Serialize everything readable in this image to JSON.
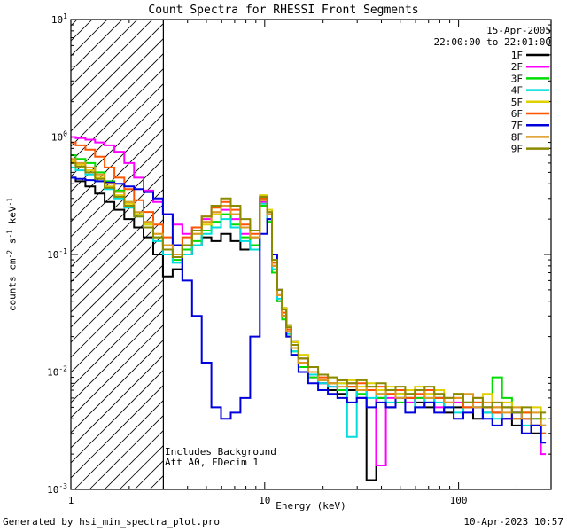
{
  "header": {
    "title": "Count Spectra for RHESSI Front Segments"
  },
  "info": {
    "date": "15-Apr-2005",
    "time_range": "22:00:00 to 22:01:00"
  },
  "annotations": {
    "line1": "Includes Background",
    "line2": "Att A0, FDecim 1"
  },
  "footer": {
    "left": "Generated by hsi_min_spectra_plot.pro",
    "right": "10-Apr-2023 10:57"
  },
  "axes": {
    "xlabel": "Energy (keV)",
    "ylabel_parts": [
      {
        "t": "counts cm"
      },
      {
        "sup": "-2"
      },
      {
        "t": " s"
      },
      {
        "sup": "-1"
      },
      {
        "t": " keV"
      },
      {
        "sup": "-1"
      }
    ],
    "xlim": [
      1,
      300
    ],
    "ylim": [
      0.001,
      10
    ],
    "xticks": [
      {
        "v": 1,
        "label": "1"
      },
      {
        "v": 10,
        "label": "10"
      },
      {
        "v": 100,
        "label": "100"
      }
    ],
    "yticks": [
      {
        "v": 0.001,
        "base": "10",
        "exp": "-3"
      },
      {
        "v": 0.01,
        "base": "10",
        "exp": "-2"
      },
      {
        "v": 0.1,
        "base": "10",
        "exp": "-1"
      },
      {
        "v": 1,
        "base": "10",
        "exp": "0"
      },
      {
        "v": 10,
        "base": "10",
        "exp": "1"
      }
    ]
  },
  "chart_data": {
    "type": "line",
    "x_scale": "log",
    "y_scale": "log",
    "title": "Count Spectra for RHESSI Front Segments",
    "xlabel": "Energy (keV)",
    "ylabel": "counts cm^-2 s^-1 keV^-1",
    "xlim": [
      1,
      300
    ],
    "ylim": [
      0.001,
      10
    ],
    "legend_position": "top-right",
    "hatch_region": {
      "x0": 1,
      "x1": 3
    },
    "x": [
      1.0,
      1.12,
      1.26,
      1.41,
      1.58,
      1.78,
      2.0,
      2.24,
      2.51,
      2.82,
      3.16,
      3.55,
      3.98,
      4.47,
      5.01,
      5.62,
      6.31,
      7.08,
      7.94,
      8.91,
      10.0,
      10.6,
      11.2,
      12.0,
      12.6,
      13.3,
      14.1,
      15.8,
      17.8,
      20.0,
      22.4,
      25.1,
      28.2,
      31.6,
      35.5,
      39.8,
      44.7,
      50.1,
      56.2,
      63.1,
      70.8,
      79.4,
      89.1,
      100,
      112,
      126,
      141,
      158,
      178,
      200,
      224,
      251,
      282
    ],
    "series": [
      {
        "name": "1F",
        "color": "#000000",
        "values": [
          0.45,
          0.42,
          0.38,
          0.33,
          0.28,
          0.24,
          0.2,
          0.17,
          0.14,
          0.1,
          0.065,
          0.075,
          0.1,
          0.12,
          0.14,
          0.13,
          0.15,
          0.13,
          0.11,
          0.14,
          0.3,
          0.22,
          0.1,
          0.05,
          0.035,
          0.025,
          0.018,
          0.013,
          0.01,
          0.008,
          0.007,
          0.0065,
          0.007,
          0.006,
          0.0012,
          0.006,
          0.005,
          0.0065,
          0.006,
          0.0055,
          0.005,
          0.006,
          0.0045,
          0.005,
          0.0055,
          0.004,
          0.005,
          0.0045,
          0.004,
          0.0035,
          0.004,
          0.003,
          0.0035
        ]
      },
      {
        "name": "2F",
        "color": "#ff00ff",
        "values": [
          1.0,
          0.98,
          0.95,
          0.9,
          0.85,
          0.75,
          0.6,
          0.45,
          0.35,
          0.28,
          0.22,
          0.18,
          0.15,
          0.17,
          0.2,
          0.22,
          0.24,
          0.2,
          0.15,
          0.12,
          0.28,
          0.2,
          0.08,
          0.04,
          0.03,
          0.022,
          0.016,
          0.012,
          0.009,
          0.008,
          0.0075,
          0.007,
          0.008,
          0.006,
          0.007,
          0.0016,
          0.006,
          0.007,
          0.0055,
          0.006,
          0.0065,
          0.005,
          0.006,
          0.0055,
          0.005,
          0.006,
          0.0045,
          0.005,
          0.004,
          0.0045,
          0.004,
          0.0035,
          0.002
        ]
      },
      {
        "name": "3F",
        "color": "#00dd00",
        "values": [
          0.7,
          0.65,
          0.6,
          0.5,
          0.42,
          0.35,
          0.28,
          0.22,
          0.18,
          0.14,
          0.11,
          0.09,
          0.11,
          0.13,
          0.16,
          0.19,
          0.22,
          0.18,
          0.14,
          0.12,
          0.26,
          0.19,
          0.07,
          0.04,
          0.028,
          0.02,
          0.015,
          0.011,
          0.009,
          0.0085,
          0.008,
          0.007,
          0.0075,
          0.0065,
          0.007,
          0.006,
          0.0065,
          0.0055,
          0.007,
          0.006,
          0.0055,
          0.006,
          0.005,
          0.0065,
          0.005,
          0.0055,
          0.0045,
          0.009,
          0.006,
          0.004,
          0.0045,
          0.0035,
          0.004
        ]
      },
      {
        "name": "4F",
        "color": "#00dddd",
        "values": [
          0.55,
          0.52,
          0.48,
          0.42,
          0.36,
          0.3,
          0.25,
          0.21,
          0.17,
          0.13,
          0.1,
          0.085,
          0.1,
          0.12,
          0.15,
          0.17,
          0.2,
          0.17,
          0.13,
          0.11,
          0.27,
          0.2,
          0.075,
          0.042,
          0.03,
          0.021,
          0.015,
          0.012,
          0.0095,
          0.008,
          0.0075,
          0.008,
          0.0028,
          0.007,
          0.006,
          0.0065,
          0.0055,
          0.006,
          0.0065,
          0.005,
          0.006,
          0.0055,
          0.005,
          0.0045,
          0.0055,
          0.005,
          0.0045,
          0.004,
          0.005,
          0.0045,
          0.0035,
          0.004,
          0.003
        ]
      },
      {
        "name": "5F",
        "color": "#e0d000",
        "values": [
          0.62,
          0.58,
          0.52,
          0.45,
          0.38,
          0.32,
          0.27,
          0.22,
          0.18,
          0.15,
          0.12,
          0.1,
          0.12,
          0.15,
          0.18,
          0.22,
          0.26,
          0.22,
          0.17,
          0.14,
          0.32,
          0.24,
          0.09,
          0.05,
          0.035,
          0.025,
          0.018,
          0.014,
          0.011,
          0.0095,
          0.009,
          0.008,
          0.0085,
          0.0075,
          0.008,
          0.007,
          0.0075,
          0.0065,
          0.007,
          0.0075,
          0.0065,
          0.007,
          0.006,
          0.0065,
          0.0055,
          0.006,
          0.0065,
          0.005,
          0.0055,
          0.005,
          0.0045,
          0.005,
          0.004
        ]
      },
      {
        "name": "6F",
        "color": "#ff5500",
        "values": [
          0.9,
          0.85,
          0.78,
          0.68,
          0.55,
          0.45,
          0.36,
          0.29,
          0.23,
          0.18,
          0.14,
          0.12,
          0.14,
          0.17,
          0.21,
          0.25,
          0.28,
          0.24,
          0.18,
          0.15,
          0.3,
          0.22,
          0.085,
          0.045,
          0.032,
          0.023,
          0.017,
          0.013,
          0.01,
          0.009,
          0.008,
          0.0085,
          0.0075,
          0.008,
          0.007,
          0.0075,
          0.0065,
          0.007,
          0.006,
          0.0065,
          0.007,
          0.006,
          0.0055,
          0.006,
          0.005,
          0.0055,
          0.005,
          0.0045,
          0.005,
          0.004,
          0.0045,
          0.0035,
          0.003
        ]
      },
      {
        "name": "7F",
        "color": "#0000dd",
        "values": [
          0.45,
          0.44,
          0.43,
          0.42,
          0.41,
          0.4,
          0.38,
          0.36,
          0.34,
          0.3,
          0.22,
          0.12,
          0.06,
          0.03,
          0.012,
          0.005,
          0.004,
          0.0045,
          0.006,
          0.02,
          0.15,
          0.2,
          0.1,
          0.05,
          0.03,
          0.02,
          0.014,
          0.01,
          0.008,
          0.007,
          0.0065,
          0.006,
          0.0055,
          0.006,
          0.005,
          0.0055,
          0.005,
          0.006,
          0.0045,
          0.005,
          0.0055,
          0.0045,
          0.005,
          0.004,
          0.0045,
          0.005,
          0.004,
          0.0035,
          0.004,
          0.0045,
          0.003,
          0.0035,
          0.0025
        ]
      },
      {
        "name": "8F",
        "color": "#dd9922",
        "values": [
          0.65,
          0.6,
          0.55,
          0.48,
          0.4,
          0.34,
          0.28,
          0.23,
          0.19,
          0.15,
          0.12,
          0.1,
          0.12,
          0.15,
          0.19,
          0.23,
          0.26,
          0.22,
          0.17,
          0.14,
          0.29,
          0.22,
          0.08,
          0.045,
          0.03,
          0.022,
          0.016,
          0.012,
          0.01,
          0.0085,
          0.008,
          0.0075,
          0.008,
          0.007,
          0.0075,
          0.0065,
          0.007,
          0.006,
          0.0065,
          0.007,
          0.006,
          0.0065,
          0.0055,
          0.006,
          0.0065,
          0.005,
          0.0055,
          0.005,
          0.0045,
          0.005,
          0.004,
          0.0045,
          0.0035
        ]
      },
      {
        "name": "9F",
        "color": "#8a8a00",
        "values": [
          0.6,
          0.56,
          0.5,
          0.44,
          0.37,
          0.31,
          0.26,
          0.21,
          0.17,
          0.14,
          0.11,
          0.095,
          0.12,
          0.16,
          0.21,
          0.26,
          0.3,
          0.26,
          0.2,
          0.16,
          0.31,
          0.23,
          0.09,
          0.05,
          0.034,
          0.024,
          0.017,
          0.013,
          0.011,
          0.0095,
          0.009,
          0.0085,
          0.008,
          0.0085,
          0.0075,
          0.008,
          0.007,
          0.0075,
          0.0065,
          0.007,
          0.0075,
          0.0065,
          0.006,
          0.0065,
          0.0055,
          0.006,
          0.005,
          0.0055,
          0.005,
          0.0045,
          0.005,
          0.004,
          0.0045
        ]
      }
    ]
  }
}
